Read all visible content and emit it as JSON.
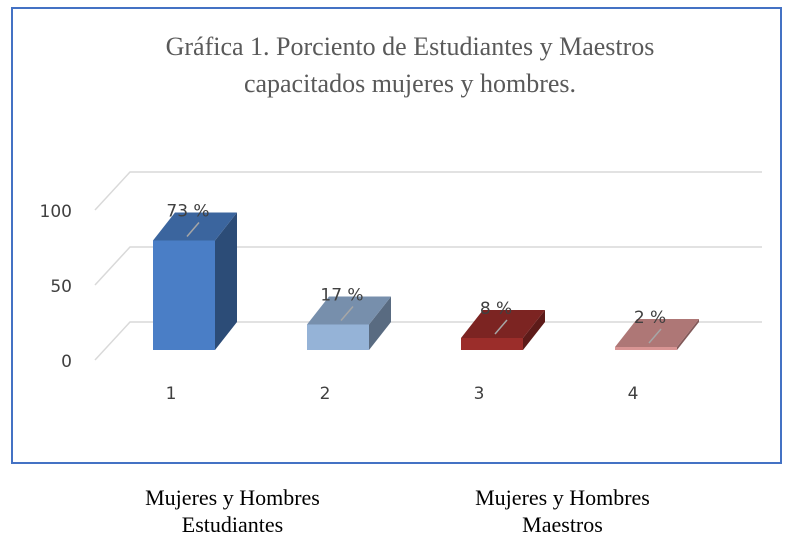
{
  "chart_data": {
    "type": "bar3d",
    "title": "Gráfica 1. Porciento de Estudiantes y Maestros capacitados mujeres y hombres.",
    "categories": [
      "1",
      "2",
      "3",
      "4"
    ],
    "values": [
      73,
      17,
      8,
      2
    ],
    "value_labels": [
      "73 %",
      "17 %",
      "8 %",
      "2 %"
    ],
    "colors": [
      "#4a7ec6",
      "#95b3d7",
      "#9b2d2a",
      "#d99594"
    ],
    "ylim": [
      0,
      100
    ],
    "yticks": [
      0,
      50,
      100
    ],
    "grid": true
  },
  "footer_labels": [
    "Mujeres y Hombres Estudiantes",
    "Mujeres y Hombres Maestros"
  ]
}
